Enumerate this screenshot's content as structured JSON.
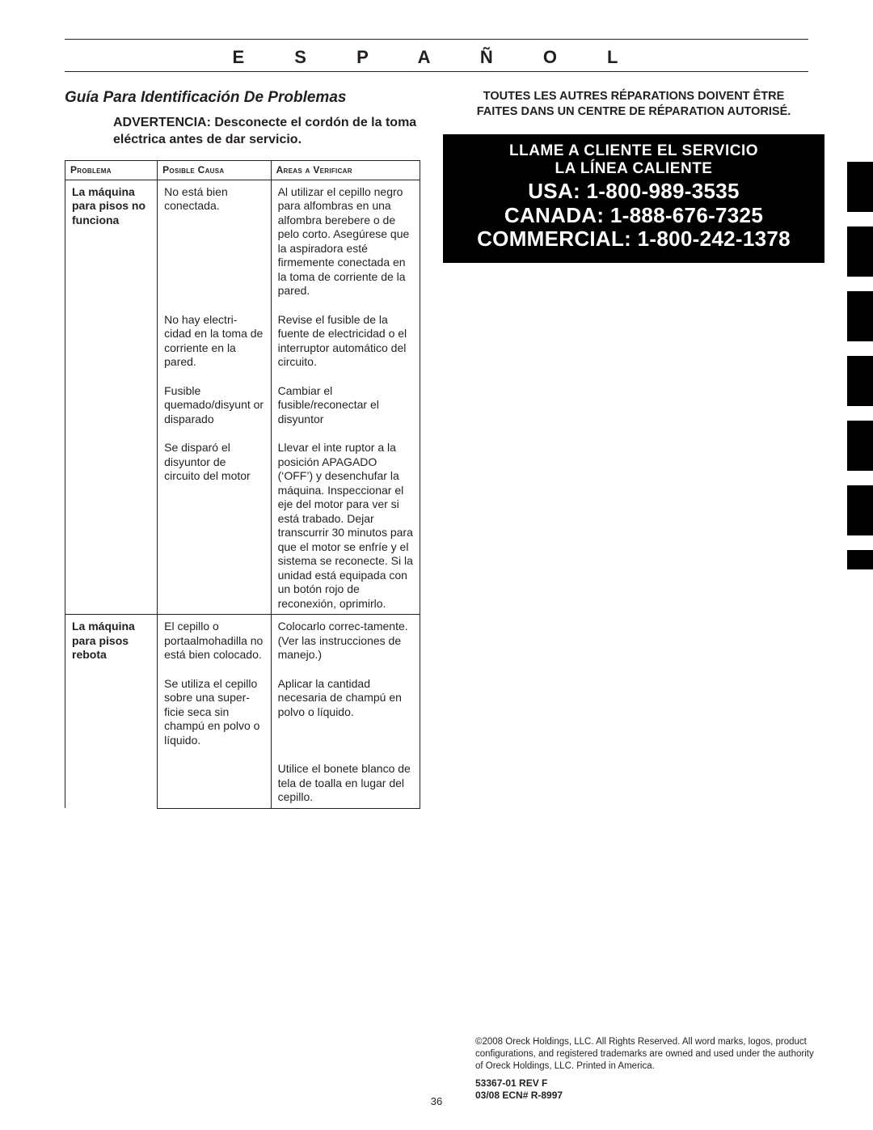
{
  "header": {
    "language": "E S P A Ñ O L"
  },
  "left": {
    "section_title": "Guía Para Identificación De Problemas",
    "warning": "ADVERTENCIA: Desconecte el cordón de la toma eléctrica antes de dar servicio.",
    "table": {
      "columns": [
        "Problema",
        "Posible Causa",
        "Areas a Verificar"
      ],
      "groups": [
        {
          "problem": "La máquina para pisos no funciona",
          "rows": [
            {
              "cause": "No está bien conectada.",
              "areas": "Al utilizar el cepillo negro para alfombras en una alfombra berebere o de pelo corto. Asegúrese que la aspiradora esté firmemente conectada en la toma de corriente de la pared."
            },
            {
              "cause": "No hay electri-cidad en la toma de corriente en la pared.",
              "areas": "Revise el fusible de la fuente de electricidad o el interruptor automático del circuito."
            },
            {
              "cause": "Fusible quemado/disyunt or disparado",
              "areas": "Cambiar el fusible/reconectar el disyuntor"
            },
            {
              "cause": "Se disparó el disyuntor de circuito del motor",
              "areas": "Llevar el inte ruptor a la posición APAGADO (‘OFF’) y desenchufar la máquina. Inspeccionar el eje del motor para ver si está trabado. Dejar transcurrir 30 minutos para que el motor se enfríe y el sistema se reconecte. Si la unidad está equipada con un botón rojo de reconexión, oprimirlo."
            }
          ]
        },
        {
          "problem": "La máquina para pisos rebota",
          "rows": [
            {
              "cause": "El cepillo o portaalmohadilla no está bien colocado.",
              "areas": "Colocarlo correc-tamente. (Ver las instrucciones de manejo.)"
            },
            {
              "cause": "Se utiliza el cepillo sobre una super-ficie seca sin champú en polvo o líquido.",
              "areas": "Aplicar la cantidad necesaria de champú en polvo o líquido."
            },
            {
              "cause": "",
              "areas": "Utilice el bonete blanco de tela de toalla en lugar del cepillo."
            }
          ]
        }
      ]
    }
  },
  "right": {
    "repair_note_l1": "TOUTES LES AUTRES RÉPARATIONS DOIVENT ÊTRE",
    "repair_note_l2": "FAITES DANS UN CENTRE DE RÉPARATION AUTORISÉ.",
    "hotline": {
      "line1": "LLAME A CLIENTE EL SERVICIO",
      "line2": "LA LÍNEA CALIENTE",
      "usa": "USA: 1-800-989-3535",
      "canada": "CANADA: 1-888-676-7325",
      "commercial": "COMMERCIAL: 1-800-242-1378"
    }
  },
  "footer": {
    "copyright": "©2008 Oreck Holdings, LLC. All Rights Reserved. All word marks, logos, product configurations, and registered trademarks are owned and used under the authority of Oreck Holdings, LLC. Printed in America.",
    "rev1": "53367-01 REV F",
    "rev2": "03/08 ECN# R-8997",
    "page_number": "36"
  },
  "colors": {
    "text": "#231f20",
    "box_bg": "#000000",
    "box_fg": "#ffffff",
    "page_bg": "#ffffff"
  }
}
